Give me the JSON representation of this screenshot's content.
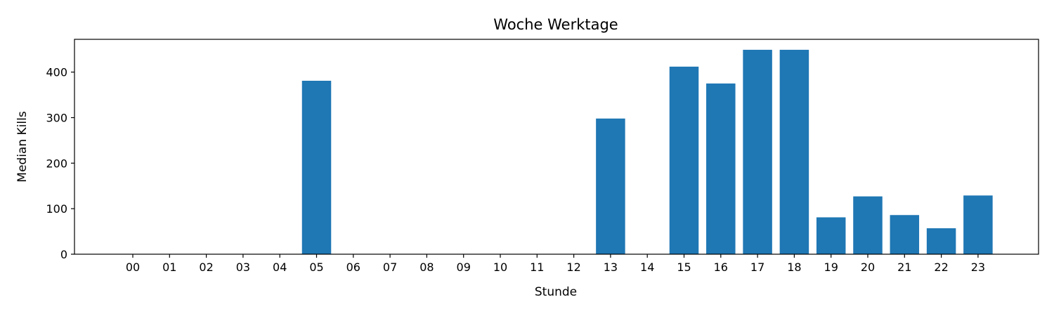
{
  "chart_data": {
    "type": "bar",
    "title": "Woche Werktage",
    "xlabel": "Stunde",
    "ylabel": "Median Kills",
    "categories": [
      "00",
      "01",
      "02",
      "03",
      "04",
      "05",
      "06",
      "07",
      "08",
      "09",
      "10",
      "11",
      "12",
      "13",
      "14",
      "15",
      "16",
      "17",
      "18",
      "19",
      "20",
      "21",
      "22",
      "23"
    ],
    "values": [
      0,
      0,
      0,
      0,
      0,
      381,
      0,
      0,
      0,
      0,
      0,
      0,
      0,
      298,
      0,
      412,
      375,
      449,
      449,
      81,
      127,
      86,
      57,
      129
    ],
    "ylim": [
      0,
      472
    ],
    "yticks": [
      0,
      100,
      200,
      300,
      400
    ],
    "bar_color": "#1f77b4",
    "grid": false,
    "legend": "none"
  }
}
